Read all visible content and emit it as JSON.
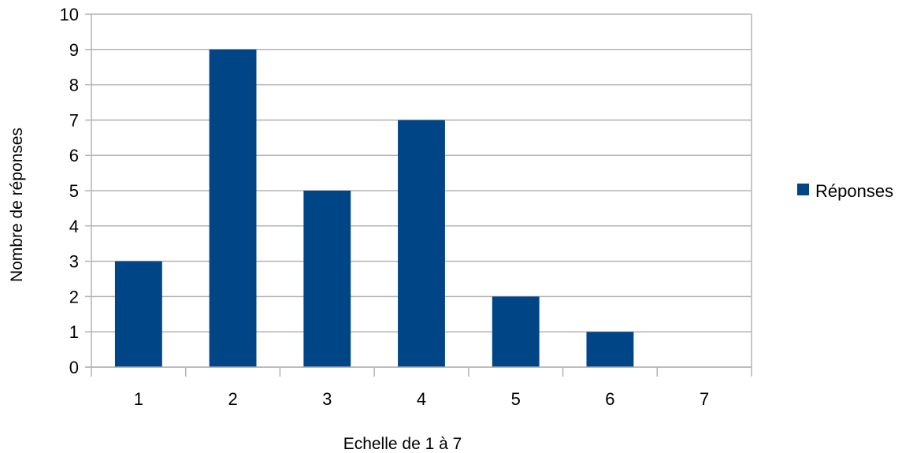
{
  "chart_data": {
    "type": "bar",
    "categories": [
      "1",
      "2",
      "3",
      "4",
      "5",
      "6",
      "7"
    ],
    "series": [
      {
        "name": "Réponses",
        "values": [
          3,
          9,
          5,
          7,
          2,
          1,
          0
        ]
      }
    ],
    "xlabel": "Echelle de 1 à 7",
    "ylabel": "Nombre de réponses",
    "ylim": [
      0,
      10
    ],
    "yticks": [
      "0",
      "1",
      "2",
      "3",
      "4",
      "5",
      "6",
      "7",
      "8",
      "9",
      "10"
    ],
    "grid": true,
    "legend_position": "right",
    "colors": {
      "bar": "#004586",
      "grid": "#b3b3b3"
    }
  }
}
